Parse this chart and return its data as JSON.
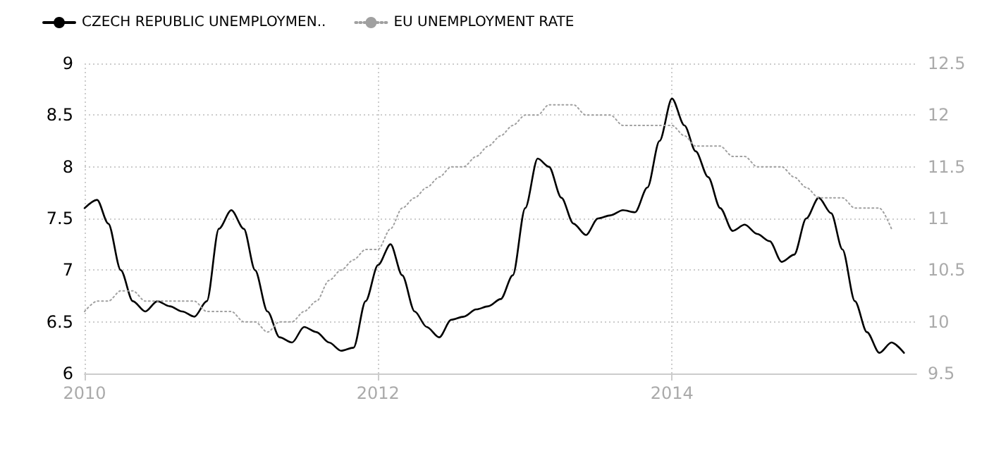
{
  "chart_data": {
    "type": "line",
    "x": [
      "2010-01",
      "2010-02",
      "2010-03",
      "2010-04",
      "2010-05",
      "2010-06",
      "2010-07",
      "2010-08",
      "2010-09",
      "2010-10",
      "2010-11",
      "2010-12",
      "2011-01",
      "2011-02",
      "2011-03",
      "2011-04",
      "2011-05",
      "2011-06",
      "2011-07",
      "2011-08",
      "2011-09",
      "2011-10",
      "2011-11",
      "2011-12",
      "2012-01",
      "2012-02",
      "2012-03",
      "2012-04",
      "2012-05",
      "2012-06",
      "2012-07",
      "2012-08",
      "2012-09",
      "2012-10",
      "2012-11",
      "2012-12",
      "2013-01",
      "2013-02",
      "2013-03",
      "2013-04",
      "2013-05",
      "2013-06",
      "2013-07",
      "2013-08",
      "2013-09",
      "2013-10",
      "2013-11",
      "2013-12",
      "2014-01",
      "2014-02",
      "2014-03",
      "2014-04",
      "2014-05",
      "2014-06",
      "2014-07",
      "2014-08",
      "2014-09",
      "2014-10",
      "2014-11",
      "2014-12",
      "2015-01",
      "2015-02",
      "2015-03",
      "2015-04",
      "2015-05",
      "2015-06",
      "2015-07",
      "2015-08"
    ],
    "series": [
      {
        "name": "CZECH REPUBLIC UNEMPLOYMEN..",
        "color": "#000000",
        "line_style": "solid",
        "values": [
          7.6,
          7.68,
          7.45,
          7.0,
          6.7,
          6.6,
          6.7,
          6.65,
          6.6,
          6.55,
          6.7,
          7.4,
          7.58,
          7.4,
          7.0,
          6.6,
          6.35,
          6.3,
          6.45,
          6.4,
          6.3,
          6.22,
          6.25,
          6.7,
          7.05,
          7.25,
          6.95,
          6.6,
          6.45,
          6.35,
          6.52,
          6.55,
          6.62,
          6.65,
          6.72,
          6.95,
          7.6,
          8.08,
          8.0,
          7.7,
          7.45,
          7.34,
          7.5,
          7.53,
          7.58,
          7.56,
          7.8,
          8.25,
          8.66,
          8.4,
          8.15,
          7.9,
          7.6,
          7.38,
          7.44,
          7.35,
          7.28,
          7.08,
          7.15,
          7.5,
          7.7,
          7.55,
          7.2,
          6.7,
          6.4,
          6.2,
          6.3,
          6.2
        ]
      },
      {
        "name": "EU UNEMPLOYMENT RATE",
        "color": "#a0a0a0",
        "line_style": "dotted",
        "axis": "y2",
        "values": [
          10.1,
          10.2,
          10.2,
          10.3,
          10.3,
          10.2,
          10.2,
          10.2,
          10.2,
          10.2,
          10.1,
          10.1,
          10.1,
          10.0,
          10.0,
          9.9,
          10.0,
          10.0,
          10.1,
          10.2,
          10.4,
          10.5,
          10.6,
          10.7,
          10.7,
          10.9,
          11.1,
          11.2,
          11.3,
          11.4,
          11.5,
          11.5,
          11.6,
          11.7,
          11.8,
          11.9,
          12.0,
          12.0,
          12.1,
          12.1,
          12.1,
          12.0,
          12.0,
          12.0,
          11.9,
          11.9,
          11.9,
          11.9,
          11.9,
          11.8,
          11.7,
          11.7,
          11.7,
          11.6,
          11.6,
          11.5,
          11.5,
          11.5,
          11.4,
          11.3,
          11.2,
          11.2,
          11.2,
          11.1,
          11.1,
          11.1,
          10.9,
          null
        ]
      }
    ],
    "xlim": [
      "2010-01",
      "2015-09"
    ],
    "xticks": [
      "2010",
      "2012",
      "2014"
    ],
    "ylim": [
      6,
      9
    ],
    "yticks": [
      6,
      6.5,
      7,
      7.5,
      8,
      8.5,
      9
    ],
    "y2lim": [
      9.5,
      12.5
    ],
    "y2ticks": [
      9.5,
      10,
      10.5,
      11,
      11.5,
      12,
      12.5
    ],
    "grid": true,
    "legend": "top left",
    "marker": "none"
  }
}
